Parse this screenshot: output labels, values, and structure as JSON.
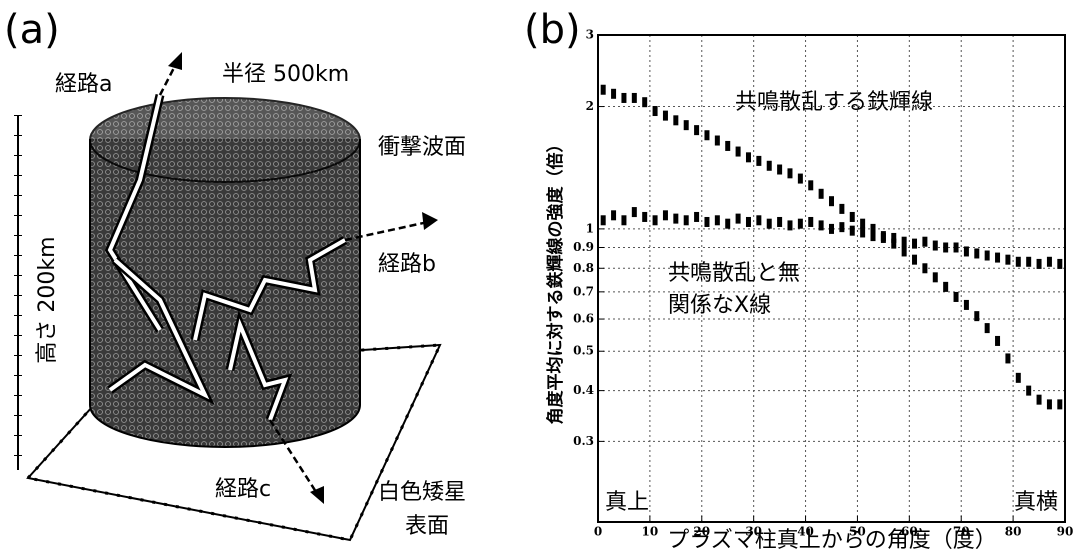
{
  "panel_a": {
    "label": "(a)",
    "path_a": "経路a",
    "radius": "半径 500km",
    "shock_front": "衝撃波面",
    "path_b": "経路b",
    "height": "高さ 200km",
    "path_c": "経路c",
    "surface_line1": "白色矮星",
    "surface_line2": "表面"
  },
  "chart_data": {
    "type": "scatter",
    "panel_label": "(b)",
    "x_label": "プラズマ柱真上からの角度（度）",
    "y_label": "角度平均に対する鉄輝線の強度（倍）",
    "annotations": [
      "真上",
      "真横"
    ],
    "log_y": true,
    "grid": true,
    "x": [
      1,
      3,
      5,
      7,
      9,
      11,
      13,
      15,
      17,
      19,
      21,
      23,
      25,
      27,
      29,
      31,
      33,
      35,
      37,
      39,
      41,
      43,
      45,
      47,
      49,
      51,
      53,
      55,
      57,
      59,
      61,
      63,
      65,
      67,
      69,
      71,
      73,
      75,
      77,
      79,
      81,
      83,
      85,
      87,
      89
    ],
    "series": [
      {
        "name": "共鳴散乱する鉄輝線",
        "color": "#000000",
        "values": [
          2.2,
          2.15,
          2.1,
          2.1,
          2.05,
          1.95,
          1.9,
          1.85,
          1.8,
          1.75,
          1.7,
          1.65,
          1.6,
          1.55,
          1.5,
          1.47,
          1.43,
          1.4,
          1.37,
          1.33,
          1.28,
          1.22,
          1.17,
          1.12,
          1.07,
          1.03,
          1.0,
          0.96,
          0.92,
          0.88,
          0.84,
          0.8,
          0.76,
          0.72,
          0.68,
          0.65,
          0.61,
          0.57,
          0.53,
          0.48,
          0.43,
          0.4,
          0.38,
          0.37,
          0.37
        ]
      },
      {
        "name": "共鳴散乱と無関係なX線",
        "color": "#000000",
        "values": [
          1.05,
          1.08,
          1.05,
          1.1,
          1.07,
          1.05,
          1.08,
          1.06,
          1.05,
          1.07,
          1.04,
          1.05,
          1.03,
          1.06,
          1.04,
          1.05,
          1.03,
          1.04,
          1.02,
          1.03,
          1.04,
          1.02,
          1.0,
          1.01,
          0.99,
          0.98,
          0.96,
          0.95,
          0.95,
          0.93,
          0.92,
          0.93,
          0.91,
          0.9,
          0.9,
          0.88,
          0.87,
          0.86,
          0.85,
          0.84,
          0.83,
          0.83,
          0.82,
          0.83,
          0.82
        ]
      }
    ],
    "xlim": [
      0,
      90
    ],
    "xticks": [
      0,
      10,
      20,
      30,
      40,
      50,
      60,
      70,
      80,
      90
    ],
    "ylim": [
      0.19,
      3
    ],
    "yticks": [
      0.3,
      0.4,
      0.5,
      0.6,
      0.7,
      0.8,
      0.9,
      1,
      2,
      3
    ]
  }
}
